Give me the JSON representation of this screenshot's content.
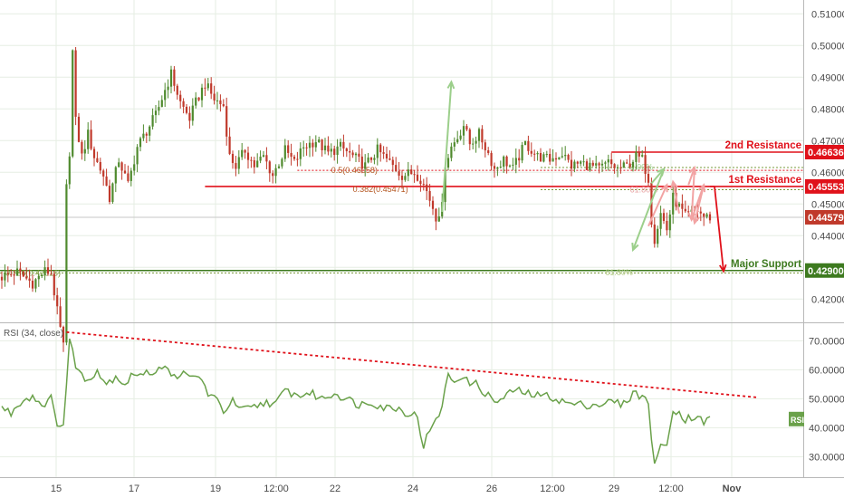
{
  "colors": {
    "background": "#ffffff",
    "up_candle": "#4f8a2e",
    "down_candle": "#c0392b",
    "resistance": "#e0111a",
    "support": "#3d7a1f",
    "rsi_line": "#6aa14a",
    "rsi_trend": "#e0111a",
    "axis_text": "#4a4a4a",
    "grid": "#e6eee3",
    "current_price": "#c7c7c7",
    "arrow_green": "#9ccf8b",
    "arrow_pink": "#f2a3a3",
    "fib_line": "#7a9a3a"
  },
  "chart_data": [
    {
      "type": "candlestick",
      "ylim": [
        0.4135,
        0.5135
      ],
      "yticks": [
        "0.51000",
        "0.50000",
        "0.49000",
        "0.48000",
        "0.47000",
        "0.46000",
        "0.45000",
        "0.44000",
        "0.43000",
        "0.42000"
      ],
      "xticks": [
        "15",
        "17",
        "19",
        "12:00",
        "22",
        "24",
        "26",
        "12:00",
        "29",
        "12:00",
        "Nov"
      ],
      "close_path": [
        [
          0,
          0.427
        ],
        [
          5,
          0.4285
        ],
        [
          10,
          0.425
        ],
        [
          14,
          0.4288
        ],
        [
          16,
          0.4282
        ],
        [
          18,
          0.416
        ],
        [
          20,
          0.405
        ],
        [
          21,
          0.455
        ],
        [
          22,
          0.465
        ],
        [
          23,
          0.4985
        ],
        [
          24,
          0.476
        ],
        [
          26,
          0.465
        ],
        [
          28,
          0.472
        ],
        [
          30,
          0.465
        ],
        [
          33,
          0.459
        ],
        [
          35,
          0.452
        ],
        [
          38,
          0.464
        ],
        [
          41,
          0.456
        ],
        [
          44,
          0.468
        ],
        [
          47,
          0.473
        ],
        [
          50,
          0.478
        ],
        [
          53,
          0.486
        ],
        [
          55,
          0.491
        ],
        [
          58,
          0.482
        ],
        [
          61,
          0.477
        ],
        [
          63,
          0.482
        ],
        [
          66,
          0.488
        ],
        [
          69,
          0.483
        ],
        [
          72,
          0.481
        ],
        [
          74,
          0.465
        ],
        [
          76,
          0.462
        ],
        [
          79,
          0.467
        ],
        [
          82,
          0.462
        ],
        [
          85,
          0.465
        ],
        [
          88,
          0.459
        ],
        [
          92,
          0.467
        ],
        [
          95,
          0.463
        ],
        [
          98,
          0.468
        ],
        [
          102,
          0.47
        ],
        [
          106,
          0.466
        ],
        [
          110,
          0.468
        ],
        [
          114,
          0.465
        ],
        [
          118,
          0.462
        ],
        [
          122,
          0.467
        ],
        [
          126,
          0.463
        ],
        [
          130,
          0.459
        ],
        [
          134,
          0.46
        ],
        [
          136,
          0.458
        ],
        [
          138,
          0.454
        ],
        [
          140,
          0.449
        ],
        [
          141,
          0.446
        ],
        [
          143,
          0.449
        ],
        [
          144,
          0.463
        ],
        [
          146,
          0.468
        ],
        [
          148,
          0.471
        ],
        [
          150,
          0.475
        ],
        [
          152,
          0.469
        ],
        [
          155,
          0.472
        ],
        [
          158,
          0.466
        ],
        [
          160,
          0.461
        ],
        [
          163,
          0.464
        ],
        [
          166,
          0.461
        ],
        [
          170,
          0.469
        ],
        [
          174,
          0.465
        ],
        [
          178,
          0.464
        ],
        [
          182,
          0.466
        ],
        [
          185,
          0.462
        ],
        [
          188,
          0.463
        ],
        [
          191,
          0.462
        ],
        [
          194,
          0.461
        ],
        [
          197,
          0.463
        ],
        [
          200,
          0.461
        ],
        [
          203,
          0.462
        ],
        [
          206,
          0.465
        ],
        [
          208,
          0.464
        ],
        [
          210,
          0.458
        ],
        [
          211,
          0.445
        ],
        [
          212,
          0.439
        ],
        [
          213,
          0.443
        ],
        [
          214,
          0.447
        ],
        [
          216,
          0.442
        ],
        [
          218,
          0.452
        ],
        [
          220,
          0.449
        ],
        [
          222,
          0.446
        ],
        [
          224,
          0.447
        ],
        [
          226,
          0.448
        ],
        [
          228,
          0.446
        ],
        [
          230,
          0.4458
        ]
      ],
      "annotations": {
        "resistance_2": {
          "label": "2nd Resistance",
          "price": "0.46636",
          "value": 0.46636
        },
        "resistance_1": {
          "label": "1st Resistance",
          "price": "0.45553",
          "value": 0.45553
        },
        "current": {
          "price": "0.44579",
          "value": 0.44579
        },
        "support": {
          "label": "Major Support",
          "price": "0.42900",
          "value": 0.429
        },
        "fib_labels": [
          "0.5(0.46058)",
          "0.382(0.45471)",
          "0.786(0.42816)",
          "0.00%",
          "61.80%",
          "61.80%"
        ]
      }
    },
    {
      "type": "line",
      "title": "RSI (34, close)",
      "ylim": [
        24.5,
        74.5
      ],
      "yticks": [
        "70.0000",
        "60.0000",
        "50.0000",
        "40.0000",
        "30.0000"
      ],
      "badge": "RSI",
      "points": [
        [
          0,
          47
        ],
        [
          3,
          45
        ],
        [
          6,
          49
        ],
        [
          10,
          51
        ],
        [
          13,
          48
        ],
        [
          16,
          50
        ],
        [
          17,
          45
        ],
        [
          18,
          42
        ],
        [
          20,
          41
        ],
        [
          21,
          55
        ],
        [
          22,
          70
        ],
        [
          24,
          62
        ],
        [
          27,
          56
        ],
        [
          31,
          60
        ],
        [
          34,
          55
        ],
        [
          37,
          58
        ],
        [
          40,
          55
        ],
        [
          43,
          59
        ],
        [
          46,
          58
        ],
        [
          50,
          60
        ],
        [
          53,
          62
        ],
        [
          55,
          57
        ],
        [
          58,
          59
        ],
        [
          61,
          57
        ],
        [
          64,
          58
        ],
        [
          67,
          52
        ],
        [
          70,
          49
        ],
        [
          72,
          46
        ],
        [
          75,
          49
        ],
        [
          78,
          46
        ],
        [
          82,
          47
        ],
        [
          86,
          49
        ],
        [
          89,
          48
        ],
        [
          92,
          53
        ],
        [
          96,
          51
        ],
        [
          100,
          52
        ],
        [
          104,
          50
        ],
        [
          108,
          52
        ],
        [
          112,
          50
        ],
        [
          116,
          48
        ],
        [
          120,
          49
        ],
        [
          124,
          47
        ],
        [
          128,
          47
        ],
        [
          132,
          45
        ],
        [
          135,
          44
        ],
        [
          136,
          38
        ],
        [
          137,
          34
        ],
        [
          139,
          39
        ],
        [
          141,
          42
        ],
        [
          143,
          48
        ],
        [
          145,
          58
        ],
        [
          147,
          56
        ],
        [
          149,
          58
        ],
        [
          151,
          56
        ],
        [
          154,
          55
        ],
        [
          157,
          52
        ],
        [
          160,
          49
        ],
        [
          163,
          50
        ],
        [
          166,
          53
        ],
        [
          170,
          52
        ],
        [
          174,
          51
        ],
        [
          178,
          51
        ],
        [
          182,
          49
        ],
        [
          186,
          48
        ],
        [
          190,
          48
        ],
        [
          194,
          48
        ],
        [
          198,
          49
        ],
        [
          202,
          48
        ],
        [
          205,
          52
        ],
        [
          208,
          51
        ],
        [
          210,
          48
        ],
        [
          211,
          37
        ],
        [
          212,
          28
        ],
        [
          214,
          33
        ],
        [
          216,
          34
        ],
        [
          218,
          47
        ],
        [
          220,
          45
        ],
        [
          222,
          43
        ],
        [
          225,
          44
        ],
        [
          228,
          42
        ],
        [
          230,
          43
        ]
      ],
      "trendline": [
        [
          21,
          73
        ],
        [
          245,
          50.5
        ]
      ]
    }
  ]
}
